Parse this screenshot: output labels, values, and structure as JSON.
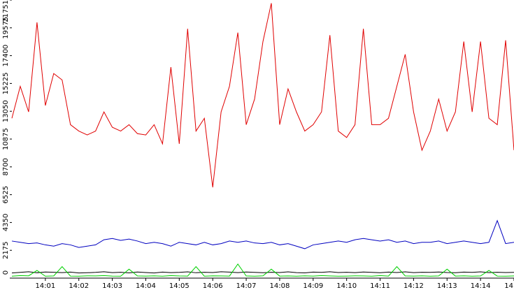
{
  "chart_data": {
    "type": "line",
    "x": [
      0,
      0.25,
      0.5,
      0.75,
      1,
      1.25,
      1.5,
      1.75,
      2,
      2.25,
      2.5,
      2.75,
      3,
      3.25,
      3.5,
      3.75,
      4,
      4.25,
      4.5,
      4.75,
      5,
      5.25,
      5.5,
      5.75,
      6,
      6.25,
      6.5,
      6.75,
      7,
      7.25,
      7.5,
      7.75,
      8,
      8.25,
      8.5,
      8.75,
      9,
      9.25,
      9.5,
      9.75,
      10,
      10.25,
      10.5,
      10.75,
      11,
      11.25,
      11.5,
      11.75,
      12,
      12.25,
      12.5,
      12.75,
      13,
      13.25,
      13.5,
      13.75,
      14,
      14.25,
      14.5,
      14.75,
      15
    ],
    "xlim": [
      0,
      15
    ],
    "xticks": [
      {
        "value": 1,
        "label": "14:01"
      },
      {
        "value": 2,
        "label": "14:02"
      },
      {
        "value": 3,
        "label": "14:03"
      },
      {
        "value": 4,
        "label": "14:04"
      },
      {
        "value": 5,
        "label": "14:05"
      },
      {
        "value": 6,
        "label": "14:06"
      },
      {
        "value": 7,
        "label": "14:07"
      },
      {
        "value": 8,
        "label": "14:08"
      },
      {
        "value": 9,
        "label": "14:09"
      },
      {
        "value": 10,
        "label": "14:10"
      },
      {
        "value": 11,
        "label": "14:11"
      },
      {
        "value": 12,
        "label": "14:12"
      },
      {
        "value": 13,
        "label": "14:13"
      },
      {
        "value": 14,
        "label": "14:14"
      },
      {
        "value": 15,
        "label": "14"
      }
    ],
    "ylim": [
      0,
      21751
    ],
    "yticks": [
      0,
      2175,
      4350,
      6525,
      8700,
      10875,
      13050,
      15225,
      17400,
      19575,
      21751
    ],
    "grid": false,
    "series": [
      {
        "color": "#e00000",
        "values": [
          12500,
          15000,
          13000,
          20000,
          13500,
          16000,
          15500,
          12000,
          11500,
          11200,
          11500,
          13000,
          11800,
          11500,
          12000,
          11300,
          11200,
          12000,
          10500,
          16500,
          10500,
          19500,
          11500,
          12500,
          7100,
          13000,
          15000,
          19200,
          12000,
          14000,
          18500,
          21500,
          12000,
          14800,
          13000,
          11500,
          12000,
          13000,
          19000,
          11500,
          11000,
          12000,
          19500,
          12000,
          12000,
          12500,
          15000,
          17500,
          13000,
          10000,
          11500,
          14000,
          11500,
          13000,
          18500,
          13000,
          18500,
          12500,
          12000,
          18600,
          10000
        ]
      },
      {
        "color": "#0000c0",
        "values": [
          2900,
          2800,
          2700,
          2750,
          2600,
          2500,
          2700,
          2600,
          2400,
          2500,
          2600,
          3000,
          3100,
          2950,
          3050,
          2900,
          2700,
          2800,
          2700,
          2500,
          2800,
          2700,
          2600,
          2800,
          2600,
          2700,
          2900,
          2800,
          2900,
          2750,
          2700,
          2800,
          2600,
          2700,
          2500,
          2300,
          2600,
          2700,
          2800,
          2900,
          2800,
          3000,
          3100,
          3000,
          2900,
          3000,
          2800,
          2900,
          2700,
          2800,
          2800,
          2900,
          2700,
          2800,
          2900,
          2800,
          2700,
          2800,
          4500,
          2700,
          2800
        ]
      },
      {
        "color": "#000000",
        "values": [
          400,
          450,
          500,
          420,
          480,
          460,
          430,
          470,
          400,
          420,
          450,
          500,
          430,
          460,
          410,
          480,
          440,
          400,
          470,
          430,
          450,
          490,
          420,
          460,
          440,
          500,
          470,
          430,
          480,
          450,
          420,
          460,
          440,
          490,
          430,
          410,
          470,
          450,
          500,
          440,
          460,
          430,
          480,
          450,
          420,
          470,
          440,
          490,
          430,
          460,
          450,
          480,
          440,
          420,
          470,
          450,
          490,
          430,
          460,
          440,
          450
        ]
      },
      {
        "color": "#00d000",
        "values": [
          150,
          200,
          180,
          600,
          150,
          170,
          900,
          160,
          150,
          180,
          170,
          200,
          160,
          150,
          700,
          170,
          160,
          180,
          150,
          200,
          170,
          160,
          900,
          150,
          180,
          170,
          160,
          1100,
          170,
          150,
          180,
          700,
          160,
          170,
          150,
          180,
          160,
          200,
          170,
          150,
          160,
          180,
          170,
          150,
          200,
          160,
          900,
          170,
          160,
          180,
          150,
          170,
          700,
          160,
          180,
          150,
          170,
          600,
          160,
          150,
          170
        ]
      }
    ]
  }
}
